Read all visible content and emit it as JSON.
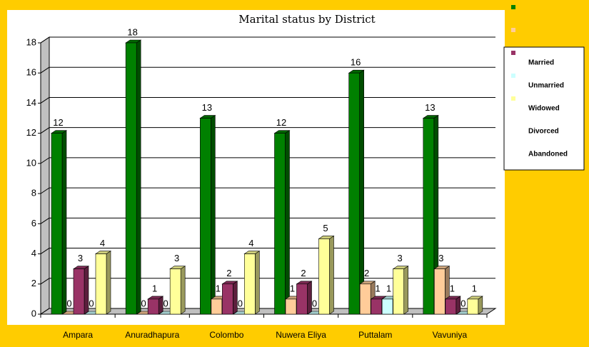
{
  "chart_data": {
    "type": "bar3d",
    "title": "Marital status by District",
    "categories": [
      "Ampara",
      "Anuradhapura",
      "Colombo",
      "Nuwera Eliya",
      "Puttalam",
      "Vavuniya"
    ],
    "series": [
      {
        "name": "Married",
        "color": "#008000",
        "values": [
          12,
          18,
          13,
          12,
          16,
          13
        ]
      },
      {
        "name": "Unmarried",
        "color": "#FFCC99",
        "values": [
          0,
          0,
          1,
          1,
          2,
          3
        ]
      },
      {
        "name": "Widowed",
        "color": "#993366",
        "values": [
          3,
          1,
          2,
          2,
          1,
          1
        ]
      },
      {
        "name": "Divorced",
        "color": "#CCFFFF",
        "values": [
          0,
          0,
          0,
          0,
          1,
          0
        ]
      },
      {
        "name": "Abandoned",
        "color": "#FFFF99",
        "values": [
          4,
          3,
          4,
          5,
          3,
          1
        ]
      }
    ],
    "ylim": [
      0,
      18
    ],
    "yticks": [
      0,
      2,
      4,
      6,
      8,
      10,
      12,
      14,
      16,
      18
    ],
    "grid": true
  }
}
